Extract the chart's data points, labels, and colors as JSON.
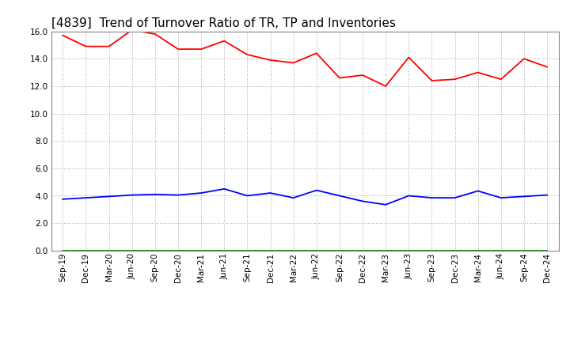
{
  "title": "[4839]  Trend of Turnover Ratio of TR, TP and Inventories",
  "x_labels": [
    "Sep-19",
    "Dec-19",
    "Mar-20",
    "Jun-20",
    "Sep-20",
    "Dec-20",
    "Mar-21",
    "Jun-21",
    "Sep-21",
    "Dec-21",
    "Mar-22",
    "Jun-22",
    "Sep-22",
    "Dec-22",
    "Mar-23",
    "Jun-23",
    "Sep-23",
    "Dec-23",
    "Mar-24",
    "Jun-24",
    "Sep-24",
    "Dec-24"
  ],
  "trade_receivables": [
    15.7,
    14.9,
    14.9,
    16.1,
    15.8,
    14.7,
    14.7,
    15.3,
    14.3,
    13.9,
    13.7,
    14.4,
    12.6,
    12.8,
    12.0,
    14.1,
    12.4,
    12.5,
    13.0,
    12.5,
    14.0,
    13.4
  ],
  "trade_payables": [
    3.75,
    3.85,
    3.95,
    4.05,
    4.1,
    4.05,
    4.2,
    4.5,
    4.0,
    4.2,
    3.85,
    4.4,
    4.0,
    3.6,
    3.35,
    4.0,
    3.85,
    3.85,
    4.35,
    3.85,
    3.95,
    4.05
  ],
  "inventories": [
    0.0,
    0.0,
    0.0,
    0.0,
    0.0,
    0.0,
    0.0,
    0.0,
    0.0,
    0.0,
    0.0,
    0.0,
    0.0,
    0.0,
    0.0,
    0.0,
    0.0,
    0.0,
    0.0,
    0.0,
    0.0,
    0.0
  ],
  "tr_color": "#FF0000",
  "tp_color": "#0000FF",
  "inv_color": "#008000",
  "ylim": [
    0.0,
    16.0
  ],
  "yticks": [
    0.0,
    2.0,
    4.0,
    6.0,
    8.0,
    10.0,
    12.0,
    14.0,
    16.0
  ],
  "bg_color": "#FFFFFF",
  "grid_color": "#AAAAAA",
  "title_fontsize": 11,
  "legend_fontsize": 9,
  "tick_fontsize": 7.5
}
